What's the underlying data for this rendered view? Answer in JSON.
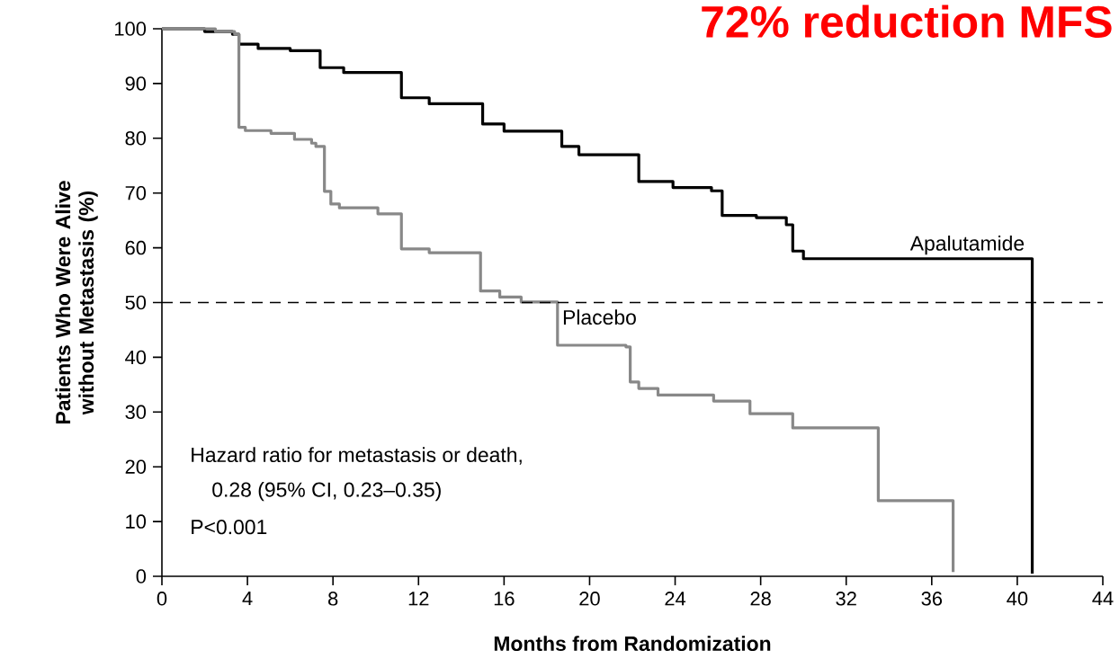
{
  "chart_data": {
    "type": "step",
    "title": "72% reduction MFS",
    "xlabel": "Months from Randomization",
    "ylabel": "Patients Who Were Alive without Metastasis (%)",
    "xlim": [
      0,
      44
    ],
    "xticks": [
      0,
      4,
      8,
      12,
      16,
      20,
      24,
      28,
      32,
      36,
      40,
      44
    ],
    "ylim": [
      0,
      100
    ],
    "yticks": [
      0,
      10,
      20,
      30,
      40,
      50,
      60,
      70,
      80,
      90,
      100
    ],
    "grid": false,
    "legend": false,
    "marker": "none",
    "line_style": "solid",
    "series": [
      {
        "name": "Apalutamide",
        "color": "#000000",
        "x": [
          0,
          2,
          3.3,
          3.6,
          4.5,
          6,
          7.1,
          7.4,
          8.5,
          10.85,
          11.2,
          12.5,
          14.5,
          15,
          16,
          18.2,
          18.7,
          19.5,
          21.7,
          22.3,
          23.9,
          25.7,
          26.2,
          27.8,
          29.2,
          29.5,
          30,
          40.7,
          40.7
        ],
        "values": [
          100,
          99.5,
          99,
          97.2,
          96.4,
          96,
          96,
          92.9,
          92,
          92,
          87.4,
          86.3,
          86.3,
          82.6,
          81.3,
          81.3,
          78.5,
          77,
          77,
          72.1,
          71,
          70.4,
          65.9,
          65.5,
          64.2,
          59.4,
          58,
          58,
          0.5
        ]
      },
      {
        "name": "Placebo",
        "color": "#888888",
        "x": [
          0,
          2.5,
          3.4,
          3.6,
          3.9,
          5.1,
          6.2,
          7.0,
          7.2,
          7.6,
          7.9,
          8.3,
          10.1,
          10.9,
          11.2,
          12.5,
          14.5,
          14.9,
          15.8,
          16.8,
          18.2,
          18.5,
          21.7,
          21.9,
          22.3,
          23.2,
          25.8,
          27.5,
          29.5,
          33.5,
          37,
          37
        ],
        "values": [
          100,
          99.5,
          99,
          82,
          81.4,
          80.9,
          79.8,
          79.1,
          78.5,
          70.3,
          68,
          67.3,
          66.2,
          66.2,
          59.8,
          59.1,
          59.1,
          52.1,
          51,
          50.1,
          50.1,
          42.2,
          41.9,
          35.5,
          34.3,
          33.1,
          32,
          29.7,
          27.1,
          13.8,
          13.8,
          0.8
        ]
      }
    ],
    "ref_lines": [
      {
        "axis": "y",
        "value": 50,
        "line_style": "dashed",
        "color": "#000000"
      }
    ],
    "annotations": [
      "Hazard ratio for metastasis or death,",
      "0.28 (95% CI, 0.23–0.35)",
      "P<0.001"
    ]
  }
}
